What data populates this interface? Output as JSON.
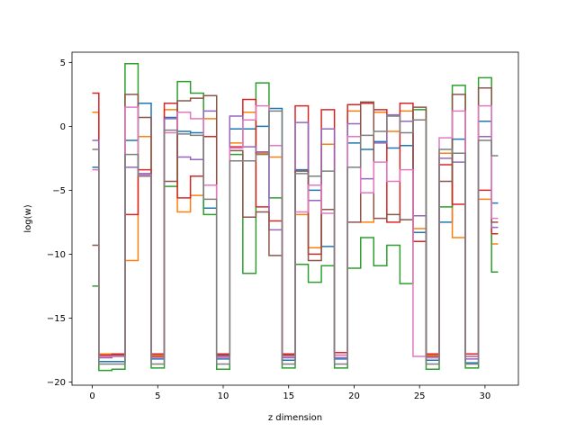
{
  "chart_data": {
    "type": "line",
    "step": "mid",
    "xlabel": "z dimension",
    "ylabel": "log(w)",
    "xlim": [
      -1.55,
      32.55
    ],
    "ylim": [
      -20.25,
      5.8
    ],
    "xticks": [
      0,
      5,
      10,
      15,
      20,
      25,
      30
    ],
    "yticks": [
      -20,
      -15,
      -10,
      -5,
      0,
      5
    ],
    "xtick_labels": [
      "0",
      "5",
      "10",
      "15",
      "20",
      "25",
      "30"
    ],
    "ytick_labels": [
      "−20",
      "−15",
      "−10",
      "−5",
      "0",
      "5"
    ],
    "grid": false,
    "x": [
      0,
      1,
      2,
      3,
      4,
      5,
      6,
      7,
      8,
      9,
      10,
      11,
      12,
      13,
      14,
      15,
      16,
      17,
      18,
      19,
      20,
      21,
      22,
      23,
      24,
      25,
      26,
      27,
      28,
      29,
      30,
      31
    ],
    "series": [
      {
        "color": "#1f77b4",
        "values": [
          -3.2,
          -18.4,
          -18.4,
          -1.1,
          1.8,
          -18.2,
          0.7,
          -0.4,
          -0.5,
          -6.4,
          -18.2,
          -0.2,
          -0.2,
          0,
          1.4,
          -18.3,
          -3.4,
          -5.0,
          -9.4,
          -18.2,
          -1.3,
          -1.8,
          -1.2,
          -1.7,
          -1.5,
          -8.3,
          -18.3,
          -7.5,
          -1.0,
          -18.5,
          0.4,
          -6.0
        ]
      },
      {
        "color": "#ff7f0e",
        "values": [
          1.1,
          -17.8,
          -17.8,
          -10.5,
          -0.8,
          -17.9,
          1.3,
          -6.7,
          -5.4,
          0.6,
          -17.9,
          -1.3,
          1.1,
          -2.1,
          -2.4,
          -17.9,
          -6.9,
          -9.5,
          -1.4,
          -17.9,
          1.2,
          -7.5,
          1.1,
          -0.4,
          1.2,
          -8.0,
          -17.9,
          -2.1,
          -8.7,
          -18.0,
          -5.7,
          -9.2
        ]
      },
      {
        "color": "#2ca02c",
        "values": [
          -12.5,
          -19.1,
          -19.0,
          4.9,
          -3.8,
          -18.9,
          -4.7,
          3.5,
          2.6,
          -6.9,
          -19.0,
          -2.2,
          -11.5,
          3.4,
          -5.6,
          -18.9,
          -10.8,
          -12.2,
          -10.9,
          -18.9,
          -11.1,
          -8.7,
          -10.9,
          -9.3,
          -12.3,
          1.3,
          -19.0,
          -6.3,
          3.2,
          -18.9,
          3.8,
          -11.4
        ]
      },
      {
        "color": "#d62728",
        "values": [
          2.6,
          -17.9,
          -17.8,
          -6.9,
          -3.4,
          -17.8,
          1.8,
          -5.6,
          -3.9,
          -0.8,
          -17.8,
          -1.6,
          2.1,
          -6.3,
          -7.4,
          -17.8,
          1.6,
          -10.0,
          1.3,
          -17.7,
          1.7,
          1.8,
          1.3,
          -7.5,
          1.8,
          -9.0,
          -17.8,
          -3.0,
          -6.1,
          -17.8,
          -5.0,
          -8.4
        ]
      },
      {
        "color": "#9467bd",
        "values": [
          -1.1,
          -18.1,
          -18.0,
          -3.2,
          -3.7,
          -18.1,
          0.6,
          -2.4,
          -2.6,
          1.2,
          -18.0,
          0.8,
          -1.6,
          -2.0,
          -8.1,
          -18.1,
          0.3,
          -5.8,
          -0.2,
          -18.1,
          0.2,
          -4.1,
          -1.3,
          0.9,
          0.4,
          -7.0,
          -18.1,
          -2.5,
          -2.8,
          -18.2,
          -0.8,
          -7.9
        ]
      },
      {
        "color": "#8c564b",
        "values": [
          -9.3,
          -18.0,
          -17.9,
          2.5,
          0.7,
          -18.0,
          -4.3,
          2.0,
          2.2,
          2.4,
          -17.9,
          -1.9,
          -7.1,
          -6.7,
          -10.1,
          -17.9,
          -3.5,
          -10.5,
          -6.5,
          -17.9,
          -7.5,
          1.9,
          -7.2,
          -6.9,
          -7.3,
          1.5,
          -18.0,
          -4.3,
          2.5,
          -18.0,
          3.0,
          -7.5
        ]
      },
      {
        "color": "#e377c2",
        "values": [
          -3.4,
          -18.0,
          -18.0,
          1.5,
          -3.8,
          -18.1,
          -0.5,
          1.1,
          0.6,
          -4.6,
          -18.1,
          -1.7,
          0.5,
          1.6,
          -1.5,
          -18.0,
          -6.7,
          -4.6,
          -6.8,
          -17.9,
          -0.8,
          -5.2,
          -2.8,
          -4.3,
          -3.4,
          -18.0,
          -18.1,
          -0.9,
          1.2,
          -18.0,
          1.6,
          -7.2
        ]
      },
      {
        "color": "#7f7f7f",
        "values": [
          -1.8,
          -18.6,
          -18.6,
          -2.2,
          -3.9,
          -18.6,
          -0.3,
          -0.6,
          -0.7,
          -5.7,
          -18.6,
          -2.7,
          -2.7,
          -2.2,
          1.2,
          -18.6,
          -3.7,
          -3.9,
          -3.5,
          -18.6,
          -3.2,
          -0.7,
          -0.4,
          0.8,
          -0.5,
          0.5,
          -18.6,
          -1.8,
          -2.1,
          -18.6,
          -1.1,
          -2.3
        ]
      }
    ]
  }
}
